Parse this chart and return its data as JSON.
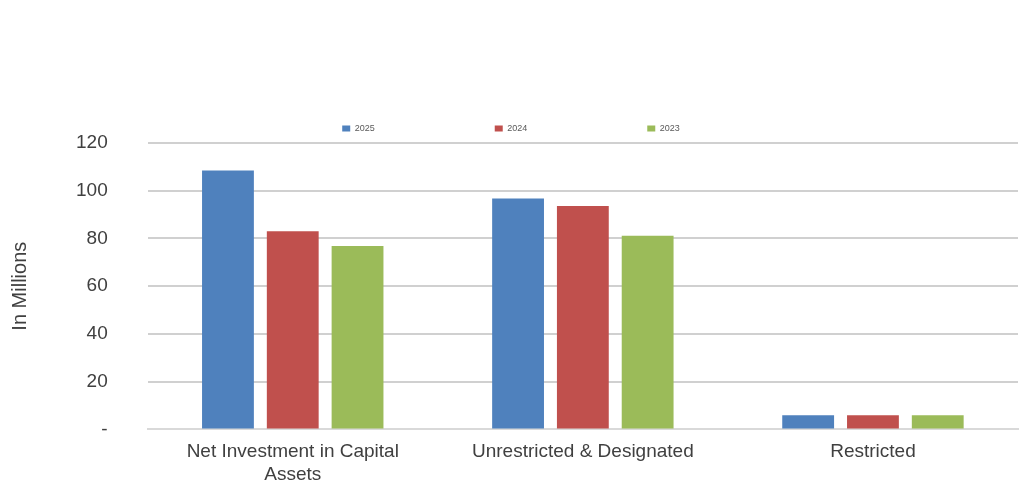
{
  "chart_data": {
    "type": "bar",
    "ylabel": "In Millions",
    "categories": [
      "Net Investment in Capital Assets",
      "Unrestricted & Designated",
      "Restricted"
    ],
    "series": [
      {
        "name": "2025",
        "color": "#4f81bd",
        "values": [
          108.5,
          96.7,
          5.9
        ]
      },
      {
        "name": "2024",
        "color": "#c0504d",
        "values": [
          83,
          93.6,
          5.9
        ]
      },
      {
        "name": "2023",
        "color": "#9bbb59",
        "values": [
          76.8,
          81.1,
          5.9
        ]
      }
    ],
    "ylim": [
      0,
      120
    ],
    "yticks": [
      {
        "value": 0,
        "label": "-"
      },
      20,
      40,
      60,
      80,
      100,
      120
    ],
    "grid": "y",
    "legend": "top"
  }
}
